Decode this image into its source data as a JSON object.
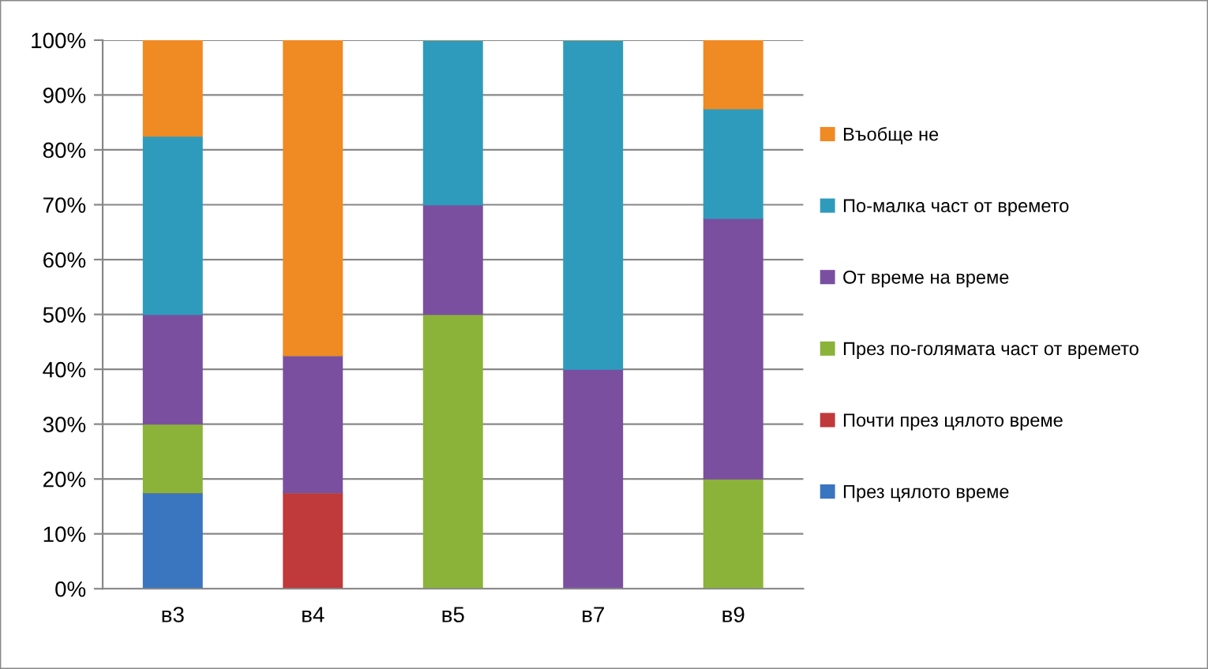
{
  "chart_data": {
    "type": "bar",
    "stacked": true,
    "categories": [
      "в3",
      "в4",
      "в5",
      "в7",
      "в9"
    ],
    "series": [
      {
        "name": "През цялото време",
        "color": "#3a75c0",
        "values": [
          17.5,
          0,
          0,
          0,
          0
        ]
      },
      {
        "name": "Почти през цялото време",
        "color": "#c0393b",
        "values": [
          0,
          17.5,
          0,
          0,
          0
        ]
      },
      {
        "name": "През по-голямата част от времето",
        "color": "#8bb33a",
        "values": [
          12.5,
          0,
          50,
          0,
          20
        ]
      },
      {
        "name": "От време на време",
        "color": "#7a4fa0",
        "values": [
          20,
          25,
          20,
          40,
          47.5
        ]
      },
      {
        "name": "По-малка част от времето",
        "color": "#2e9bbd",
        "values": [
          32.5,
          0,
          30,
          60,
          20
        ]
      },
      {
        "name": "Въобще не",
        "color": "#f08a22",
        "values": [
          17.5,
          57.5,
          0,
          0,
          12.5
        ]
      }
    ],
    "ylim": [
      0,
      100
    ],
    "yticks": [
      {
        "value": 0,
        "label": "0%"
      },
      {
        "value": 10,
        "label": "10%"
      },
      {
        "value": 20,
        "label": "20%"
      },
      {
        "value": 30,
        "label": "30%"
      },
      {
        "value": 40,
        "label": "40%"
      },
      {
        "value": 50,
        "label": "50%"
      },
      {
        "value": 60,
        "label": "60%"
      },
      {
        "value": 70,
        "label": "70%"
      },
      {
        "value": 80,
        "label": "80%"
      },
      {
        "value": 90,
        "label": "90%"
      },
      {
        "value": 100,
        "label": "100%"
      }
    ],
    "grid": "y",
    "legend": "right"
  }
}
